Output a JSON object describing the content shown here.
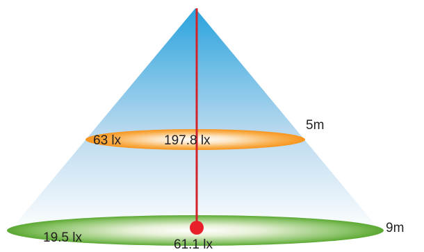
{
  "levels": [
    {
      "distance": "5m",
      "edge_illuminance": "63 lx",
      "center_illuminance": "197.8 lx",
      "color": "#f7941d"
    },
    {
      "distance": "9m",
      "edge_illuminance": "19.5 lx",
      "center_illuminance": "61.1 lx",
      "color": "#5aa832"
    }
  ],
  "colors": {
    "cone_top": "#29a3dd",
    "cone_bottom": "#ffffff",
    "axis_line": "#d2232a",
    "center_point": "#e8202a"
  }
}
